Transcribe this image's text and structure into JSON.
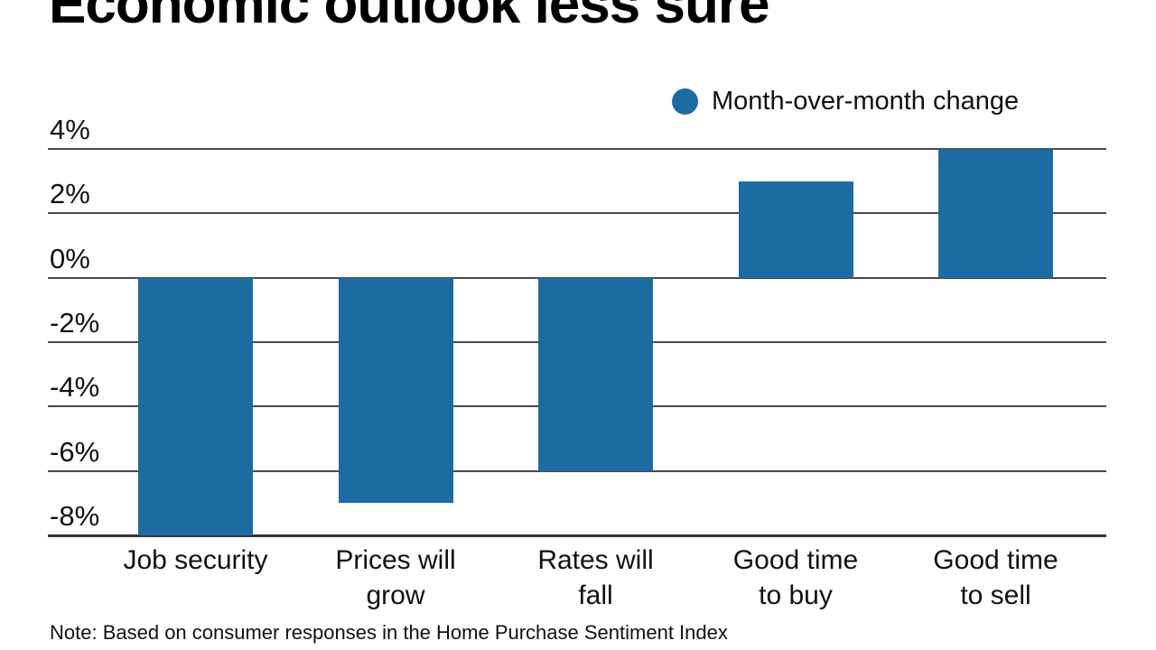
{
  "title": "Economic outlook less sure",
  "legend": {
    "label": "Month-over-month change"
  },
  "note": "Note: Based on consumer responses in the Home Purchase Sentiment Index",
  "colors": {
    "bar": "#1d6ba3",
    "gridline": "#4a4a4a",
    "text": "#111111"
  },
  "chart_data": {
    "type": "bar",
    "title": "Economic outlook less sure",
    "series_name": "Month-over-month change",
    "categories": [
      "Job security",
      "Prices will grow",
      "Rates will fall",
      "Good time to buy",
      "Good time to sell"
    ],
    "category_lines": [
      [
        "Job security"
      ],
      [
        "Prices will",
        "grow"
      ],
      [
        "Rates will",
        "fall"
      ],
      [
        "Good time",
        "to buy"
      ],
      [
        "Good time",
        "to sell"
      ]
    ],
    "values": [
      -8,
      -7,
      -6,
      3,
      4
    ],
    "unit": "%",
    "y_ticks": [
      "4%",
      "2%",
      "0%",
      "-2%",
      "-4%",
      "-6%",
      "-8%"
    ],
    "y_tick_values": [
      4,
      2,
      0,
      -2,
      -4,
      -6,
      -8
    ],
    "ylim": [
      -8,
      4
    ],
    "xlabel": "",
    "ylabel": "",
    "grid": true,
    "legend_position": "top-right",
    "bar_color": "#1d6ba3",
    "note": "Note: Based on consumer responses in the Home Purchase Sentiment Index"
  }
}
